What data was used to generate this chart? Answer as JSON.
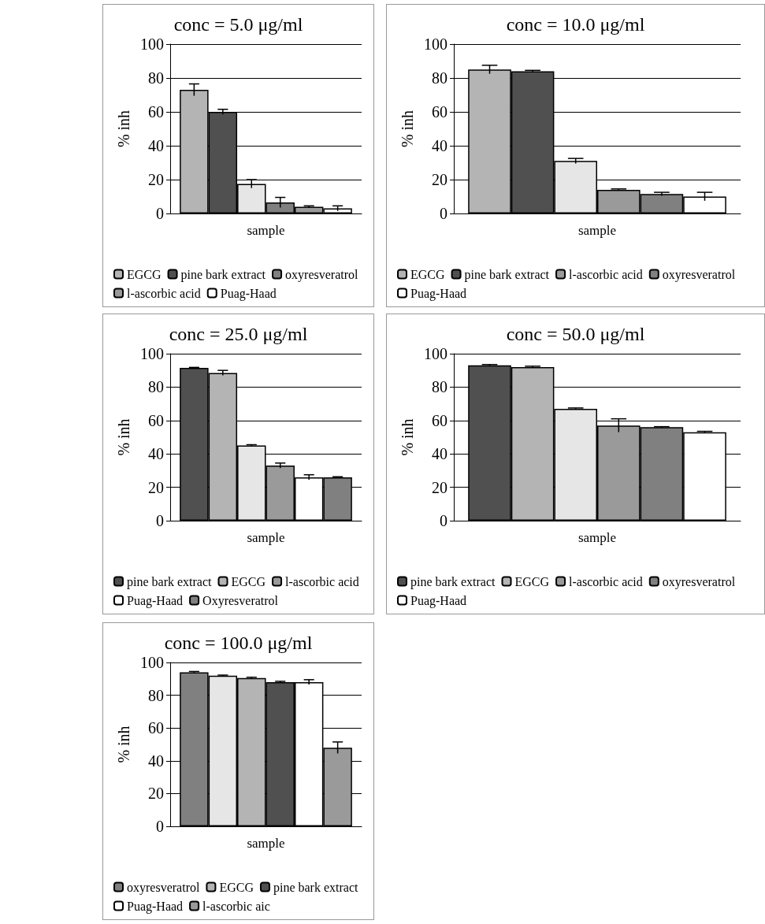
{
  "chart_data": [
    {
      "type": "bar",
      "title": "conc = 5.0 μg/ml",
      "xlabel": "sample",
      "ylabel": "% inh",
      "categories": [
        null
      ],
      "ylim": [
        0,
        100
      ],
      "yticks": [
        0,
        20,
        40,
        60,
        80,
        100
      ],
      "grid": "y",
      "legend": "bottom",
      "series": [
        {
          "name": "EGCG",
          "color": "#b4b4b4",
          "values": [
            73
          ],
          "errors": [
            3.5
          ]
        },
        {
          "name": "pine bark extract",
          "color": "#505050",
          "values": [
            60
          ],
          "errors": [
            1.5
          ]
        },
        {
          "color": "#e6e6e6",
          "values": [
            17.5
          ],
          "errors": [
            2.5
          ]
        },
        {
          "name": "oxyresveratrol",
          "color": "#808080",
          "values": [
            6.5
          ],
          "errors": [
            3
          ]
        },
        {
          "name": "l-ascorbic acid",
          "color": "#9a9a9a",
          "values": [
            4
          ],
          "errors": [
            0.5
          ]
        },
        {
          "name": "Puag-Haad",
          "color": "#ffffff",
          "values": [
            3
          ],
          "errors": [
            1.5
          ]
        }
      ]
    },
    {
      "type": "bar",
      "title": "conc = 10.0 μg/ml",
      "xlabel": "sample",
      "ylabel": "% inh",
      "categories": [
        null
      ],
      "ylim": [
        0,
        100
      ],
      "yticks": [
        0,
        20,
        40,
        60,
        80,
        100
      ],
      "grid": "y",
      "legend": "bottom",
      "series": [
        {
          "name": "EGCG",
          "color": "#b4b4b4",
          "values": [
            85
          ],
          "errors": [
            2.5
          ]
        },
        {
          "name": "pine bark extract",
          "color": "#505050",
          "values": [
            84
          ],
          "errors": [
            0.5
          ]
        },
        {
          "color": "#e6e6e6",
          "values": [
            31
          ],
          "errors": [
            1.5
          ]
        },
        {
          "name": "l-ascorbic acid",
          "color": "#9a9a9a",
          "values": [
            14
          ],
          "errors": [
            0.5
          ]
        },
        {
          "name": "oxyresveratrol",
          "color": "#808080",
          "values": [
            11.5
          ],
          "errors": [
            1
          ]
        },
        {
          "name": "Puag-Haad",
          "color": "#ffffff",
          "values": [
            10
          ],
          "errors": [
            2.5
          ]
        }
      ]
    },
    {
      "type": "bar",
      "title": "conc = 25.0 μg/ml",
      "xlabel": "sample",
      "ylabel": "% inh",
      "categories": [
        null
      ],
      "ylim": [
        0,
        100
      ],
      "yticks": [
        0,
        20,
        40,
        60,
        80,
        100
      ],
      "grid": "y",
      "legend": "bottom",
      "series": [
        {
          "name": "pine bark extract",
          "color": "#505050",
          "values": [
            91.5
          ],
          "errors": [
            0.3
          ]
        },
        {
          "name": "EGCG",
          "color": "#b4b4b4",
          "values": [
            88.5
          ],
          "errors": [
            1.5
          ]
        },
        {
          "color": "#e6e6e6",
          "values": [
            45
          ],
          "errors": [
            0.5
          ]
        },
        {
          "name": "l-ascorbic acid",
          "color": "#9a9a9a",
          "values": [
            33
          ],
          "errors": [
            1.5
          ]
        },
        {
          "name": "Puag-Haad",
          "color": "#ffffff",
          "values": [
            26
          ],
          "errors": [
            1.5
          ]
        },
        {
          "name": "Oxyresveratrol",
          "color": "#808080",
          "values": [
            26
          ],
          "errors": [
            0.3
          ]
        }
      ]
    },
    {
      "type": "bar",
      "title": "conc = 50.0 μg/ml",
      "xlabel": "sample",
      "ylabel": "% inh",
      "categories": [
        null
      ],
      "ylim": [
        0,
        100
      ],
      "yticks": [
        0,
        20,
        40,
        60,
        80,
        100
      ],
      "grid": "y",
      "legend": "bottom",
      "series": [
        {
          "name": "pine bark extract",
          "color": "#505050",
          "values": [
            93
          ],
          "errors": [
            0.5
          ]
        },
        {
          "name": "EGCG",
          "color": "#b4b4b4",
          "values": [
            92
          ],
          "errors": [
            0.5
          ]
        },
        {
          "color": "#e6e6e6",
          "values": [
            67
          ],
          "errors": [
            0.5
          ]
        },
        {
          "name": "l-ascorbic acid",
          "color": "#9a9a9a",
          "values": [
            57
          ],
          "errors": [
            4
          ]
        },
        {
          "name": "oxyresveratrol",
          "color": "#808080",
          "values": [
            56
          ],
          "errors": [
            0.3
          ]
        },
        {
          "name": "Puag-Haad",
          "color": "#ffffff",
          "values": [
            53
          ],
          "errors": [
            0.5
          ]
        }
      ]
    },
    {
      "type": "bar",
      "title": "conc = 100.0 μg/ml",
      "xlabel": "sample",
      "ylabel": "% inh",
      "categories": [
        null
      ],
      "ylim": [
        0,
        100
      ],
      "yticks": [
        0,
        20,
        40,
        60,
        80,
        100
      ],
      "grid": "y",
      "legend": "bottom",
      "series": [
        {
          "name": "oxyresveratrol",
          "color": "#808080",
          "values": [
            94
          ],
          "errors": [
            0.5
          ]
        },
        {
          "color": "#e6e6e6",
          "values": [
            92
          ],
          "errors": [
            0.3
          ]
        },
        {
          "name": "EGCG",
          "color": "#b4b4b4",
          "values": [
            90.5
          ],
          "errors": [
            0.5
          ]
        },
        {
          "name": "pine bark extract",
          "color": "#505050",
          "values": [
            88
          ],
          "errors": [
            0.5
          ]
        },
        {
          "name": "Puag-Haad",
          "color": "#ffffff",
          "values": [
            88
          ],
          "errors": [
            1.5
          ]
        },
        {
          "name": "l-ascorbic aic",
          "color": "#9a9a9a",
          "values": [
            48
          ],
          "errors": [
            3.5
          ]
        }
      ]
    }
  ]
}
